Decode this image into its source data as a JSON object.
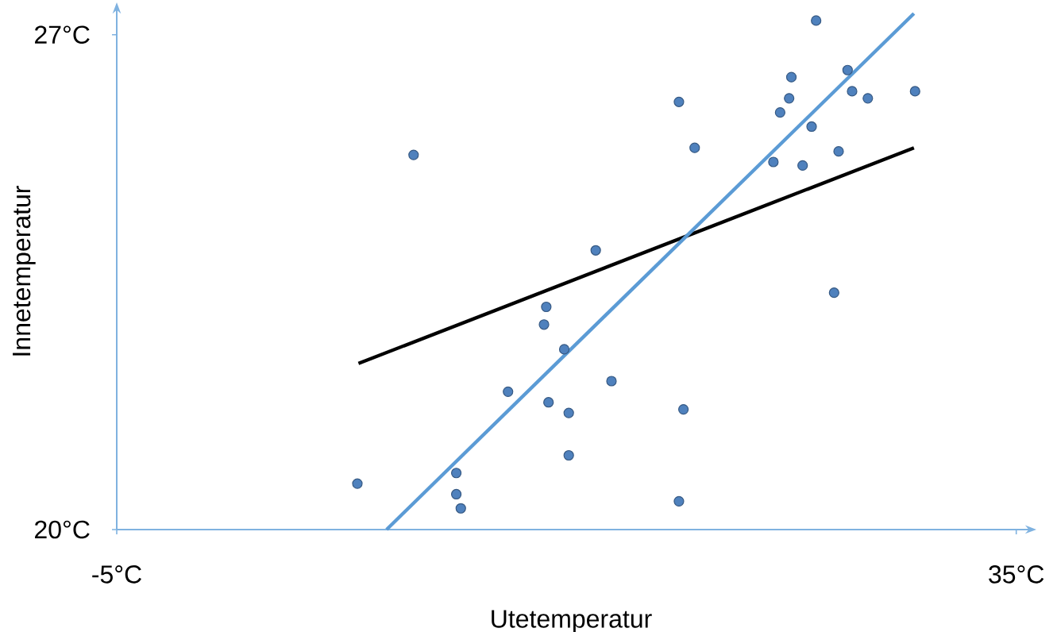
{
  "chart_data": {
    "type": "scatter",
    "xlabel": "Utetemperatur",
    "ylabel": "Innetemperatur",
    "xlim": [
      -5,
      35.4
    ],
    "ylim": [
      20,
      27.3
    ],
    "xticks": [
      {
        "value": -5,
        "label": "-5°C"
      },
      {
        "value": 35,
        "label": "35°C"
      }
    ],
    "yticks": [
      {
        "value": 20,
        "label": "20°C"
      },
      {
        "value": 27,
        "label": "27°C"
      }
    ],
    "grid": false,
    "series": [
      {
        "color": "#4f81bd",
        "marker": "circle",
        "x": [
          5.7,
          8.2,
          10.1,
          10.1,
          10.3,
          12.4,
          14.0,
          14.1,
          14.2,
          14.9,
          15.1,
          15.1,
          16.3,
          17.0,
          20.0,
          20.0,
          20.2,
          20.7,
          24.2,
          24.5,
          24.9,
          25.0,
          25.5,
          25.9,
          26.1,
          26.9,
          27.1,
          27.5,
          27.7,
          28.4,
          30.5
        ],
        "values": [
          20.65,
          25.3,
          20.8,
          20.5,
          20.3,
          21.95,
          22.9,
          23.15,
          21.8,
          22.55,
          21.65,
          21.05,
          23.95,
          22.1,
          26.05,
          20.4,
          21.7,
          25.4,
          25.2,
          25.9,
          26.1,
          26.4,
          25.15,
          25.7,
          27.2,
          23.35,
          25.35,
          26.5,
          26.2,
          26.1,
          26.2
        ]
      },
      {
        "type": "line",
        "color": "#000000",
        "marker": "none",
        "x": [
          5.75,
          30.45
        ],
        "values": [
          22.35,
          25.4
        ]
      },
      {
        "type": "line",
        "color": "#5b9bd5",
        "marker": "none",
        "x": [
          7.0,
          30.45
        ],
        "values": [
          20.0,
          27.3
        ]
      }
    ]
  }
}
